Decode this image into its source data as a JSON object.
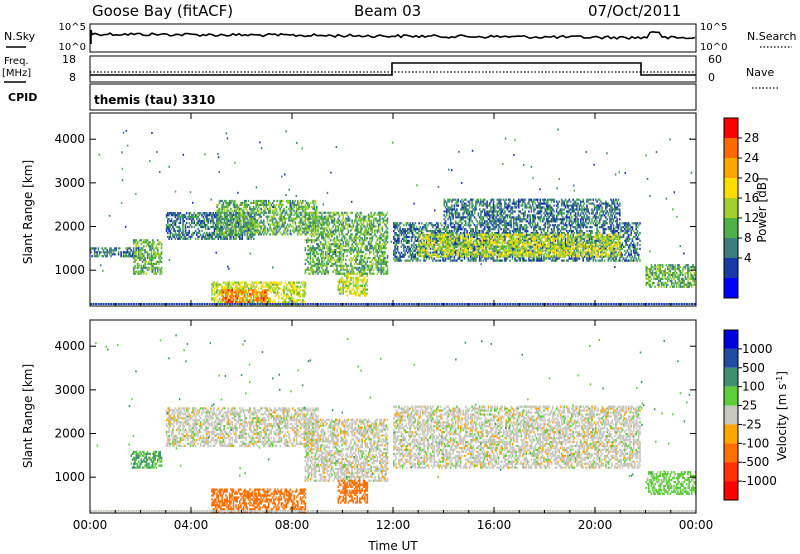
{
  "header": {
    "station": "Goose Bay (fitACF)",
    "beam": "Beam 03",
    "date": "07/Oct/2011"
  },
  "top_panels": {
    "nsky_label": "N.Sky",
    "nsearch_label": "N.Search",
    "noise_ticks": [
      "10^5",
      "10^0"
    ],
    "freq_label": "Freq.",
    "freq_unit": "[MHz]",
    "freq_ticks": [
      "18",
      "8"
    ],
    "nave_label": "Nave",
    "nave_ticks": [
      "60",
      "0"
    ],
    "cpid_label": "CPID",
    "cpid_value": "themis (tau) 3310"
  },
  "power_colorbar": {
    "label": "Power [dB]",
    "ticks": [
      "28",
      "24",
      "20",
      "16",
      "12",
      "8",
      "4"
    ],
    "colors": [
      "#0000ff",
      "#1a3aa8",
      "#3d7d80",
      "#4fb04a",
      "#a3d12c",
      "#ffdd00",
      "#ffa500",
      "#ff6a00",
      "#ff0000"
    ]
  },
  "velocity_colorbar": {
    "label": "Velocity [m s^-1]",
    "ticks": [
      "1000",
      "500",
      "100",
      "25",
      "-25",
      "-100",
      "-500",
      "-1000"
    ],
    "colors": [
      "#0000dd",
      "#1f4da0",
      "#3f8f70",
      "#5fcc3a",
      "#c8c8c0",
      "#ffa500",
      "#ff7000",
      "#ff3000",
      "#ff0000"
    ]
  },
  "chart_data": [
    {
      "type": "heatmap",
      "title": "Power",
      "xlabel": "Time UT",
      "ylabel": "Slant Range [km]",
      "x_ticks": [
        "00:00",
        "04:00",
        "08:00",
        "12:00",
        "16:00",
        "20:00",
        "00:00"
      ],
      "y_ticks": [
        1000,
        2000,
        3000,
        4000
      ],
      "xlim_hours": [
        0,
        24
      ],
      "ylim_km": [
        180,
        4600
      ],
      "colorbar_range_db": [
        0,
        30
      ],
      "regions": [
        {
          "t0": 0.0,
          "t1": 2.0,
          "r_lo": 1300,
          "r_hi": 1500,
          "level": 8
        },
        {
          "t0": 1.7,
          "t1": 2.8,
          "r_lo": 900,
          "r_hi": 1700,
          "level": 12
        },
        {
          "t0": 3.0,
          "t1": 6.5,
          "r_lo": 1700,
          "r_hi": 2300,
          "level": 8
        },
        {
          "t0": 5.0,
          "t1": 9.0,
          "r_lo": 1800,
          "r_hi": 2600,
          "level": 12
        },
        {
          "t0": 4.8,
          "t1": 8.5,
          "r_lo": 200,
          "r_hi": 700,
          "level": 16
        },
        {
          "t0": 5.2,
          "t1": 7.0,
          "r_lo": 250,
          "r_hi": 550,
          "level": 24
        },
        {
          "t0": 8.5,
          "t1": 11.8,
          "r_lo": 900,
          "r_hi": 2300,
          "level": 12
        },
        {
          "t0": 9.8,
          "t1": 11.0,
          "r_lo": 400,
          "r_hi": 900,
          "level": 16
        },
        {
          "t0": 12.0,
          "t1": 21.8,
          "r_lo": 1200,
          "r_hi": 2100,
          "level": 8
        },
        {
          "t0": 13.0,
          "t1": 21.0,
          "r_lo": 1300,
          "r_hi": 1800,
          "level": 16
        },
        {
          "t0": 14.0,
          "t1": 21.0,
          "r_lo": 2100,
          "r_hi": 2600,
          "level": 8
        },
        {
          "t0": 22.0,
          "t1": 24.0,
          "r_lo": 600,
          "r_hi": 1100,
          "level": 12
        }
      ]
    },
    {
      "type": "heatmap",
      "title": "Velocity",
      "xlabel": "Time UT",
      "ylabel": "Slant Range [km]",
      "x_ticks": [
        "00:00",
        "04:00",
        "08:00",
        "12:00",
        "16:00",
        "20:00",
        "00:00"
      ],
      "y_ticks": [
        1000,
        2000,
        3000,
        4000
      ],
      "xlim_hours": [
        0,
        24
      ],
      "ylim_km": [
        180,
        4600
      ],
      "colorbar_range_ms": [
        -1000,
        1000
      ],
      "regions": [
        {
          "t0": 1.6,
          "t1": 2.8,
          "r_lo": 1200,
          "r_hi": 1600,
          "level": 100
        },
        {
          "t0": 3.0,
          "t1": 9.0,
          "r_lo": 1700,
          "r_hi": 2600,
          "level": 0
        },
        {
          "t0": 4.8,
          "t1": 8.5,
          "r_lo": 200,
          "r_hi": 700,
          "level": -300
        },
        {
          "t0": 8.5,
          "t1": 11.8,
          "r_lo": 900,
          "r_hi": 2300,
          "level": 0
        },
        {
          "t0": 9.8,
          "t1": 11.0,
          "r_lo": 400,
          "r_hi": 900,
          "level": -150
        },
        {
          "t0": 12.0,
          "t1": 21.8,
          "r_lo": 1200,
          "r_hi": 2600,
          "level": 0
        },
        {
          "t0": 22.0,
          "t1": 24.0,
          "r_lo": 600,
          "r_hi": 1100,
          "level": 50
        }
      ]
    }
  ]
}
